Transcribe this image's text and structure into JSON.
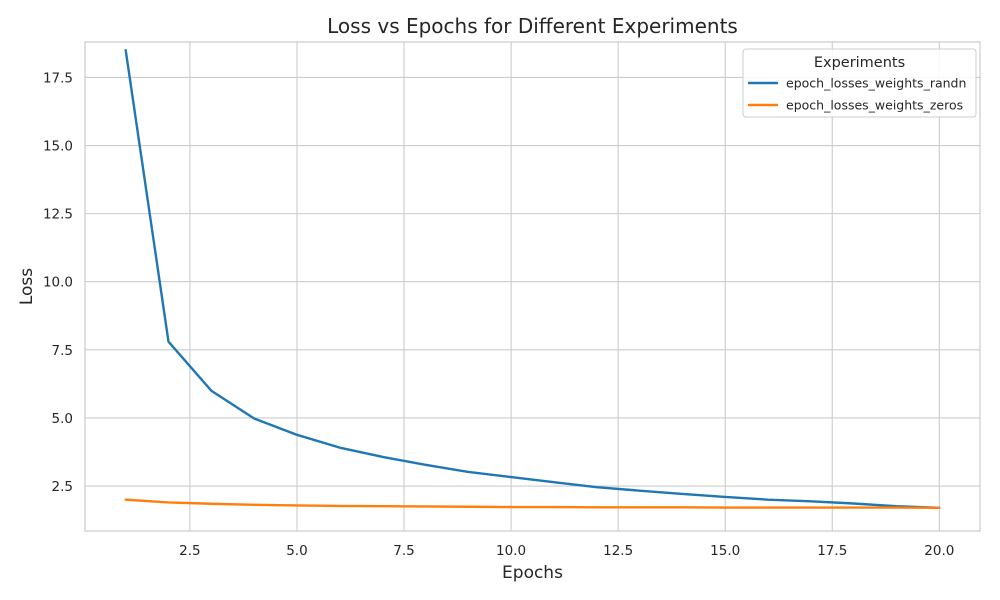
{
  "chart_data": {
    "type": "line",
    "title": "Loss vs Epochs for Different Experiments",
    "xlabel": "Epochs",
    "ylabel": "Loss",
    "xlim": [
      0.05,
      20.95
    ],
    "ylim": [
      0.85,
      18.8
    ],
    "xticks": [
      2.5,
      5.0,
      7.5,
      10.0,
      12.5,
      15.0,
      17.5,
      20.0
    ],
    "xtick_labels": [
      "2.5",
      "5.0",
      "7.5",
      "10.0",
      "12.5",
      "15.0",
      "17.5",
      "20.0"
    ],
    "yticks": [
      2.5,
      5.0,
      7.5,
      10.0,
      12.5,
      15.0,
      17.5
    ],
    "ytick_labels": [
      "2.5",
      "5.0",
      "7.5",
      "10.0",
      "12.5",
      "15.0",
      "17.5"
    ],
    "grid": true,
    "legend": {
      "title": "Experiments",
      "position": "top-right"
    },
    "x": [
      1,
      2,
      3,
      4,
      5,
      6,
      7,
      8,
      9,
      10,
      11,
      12,
      13,
      14,
      15,
      16,
      17,
      18,
      19,
      20
    ],
    "series": [
      {
        "name": "epoch_losses_weights_randn",
        "color": "#1f77b4",
        "values": [
          18.5,
          7.8,
          6.0,
          4.98,
          4.38,
          3.91,
          3.57,
          3.28,
          3.02,
          2.83,
          2.64,
          2.46,
          2.33,
          2.21,
          2.1,
          2.0,
          1.94,
          1.86,
          1.76,
          1.7
        ]
      },
      {
        "name": "epoch_losses_weights_zeros",
        "color": "#ff7f0e",
        "values": [
          2.0,
          1.9,
          1.85,
          1.81,
          1.79,
          1.77,
          1.76,
          1.75,
          1.74,
          1.73,
          1.73,
          1.72,
          1.72,
          1.72,
          1.71,
          1.71,
          1.71,
          1.71,
          1.71,
          1.7
        ]
      }
    ]
  }
}
